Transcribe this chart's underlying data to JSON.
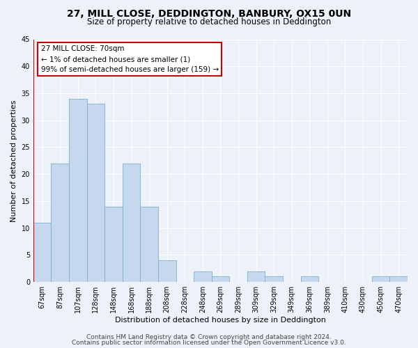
{
  "title": "27, MILL CLOSE, DEDDINGTON, BANBURY, OX15 0UN",
  "subtitle": "Size of property relative to detached houses in Deddington",
  "xlabel": "Distribution of detached houses by size in Deddington",
  "ylabel": "Number of detached properties",
  "bin_labels": [
    "67sqm",
    "87sqm",
    "107sqm",
    "128sqm",
    "148sqm",
    "168sqm",
    "188sqm",
    "208sqm",
    "228sqm",
    "248sqm",
    "269sqm",
    "289sqm",
    "309sqm",
    "329sqm",
    "349sqm",
    "369sqm",
    "389sqm",
    "410sqm",
    "430sqm",
    "450sqm",
    "470sqm"
  ],
  "bar_values": [
    11,
    22,
    34,
    33,
    14,
    22,
    14,
    4,
    0,
    2,
    1,
    0,
    2,
    1,
    0,
    1,
    0,
    0,
    0,
    1,
    1
  ],
  "bar_color": "#c5d8ed",
  "bar_edge_color": "#7aafd4",
  "highlight_color": "#cc0000",
  "ylim": [
    0,
    45
  ],
  "yticks": [
    0,
    5,
    10,
    15,
    20,
    25,
    30,
    35,
    40,
    45
  ],
  "annotation_title": "27 MILL CLOSE: 70sqm",
  "annotation_line1": "← 1% of detached houses are smaller (1)",
  "annotation_line2": "99% of semi-detached houses are larger (159) →",
  "annotation_box_color": "#ffffff",
  "annotation_box_edge": "#cc0000",
  "footer_line1": "Contains HM Land Registry data © Crown copyright and database right 2024.",
  "footer_line2": "Contains public sector information licensed under the Open Government Licence v3.0.",
  "background_color": "#edf2fa",
  "grid_color": "#ffffff",
  "title_fontsize": 10,
  "subtitle_fontsize": 8.5,
  "axis_label_fontsize": 8,
  "tick_fontsize": 7,
  "annotation_fontsize": 7.5,
  "footer_fontsize": 6.5
}
